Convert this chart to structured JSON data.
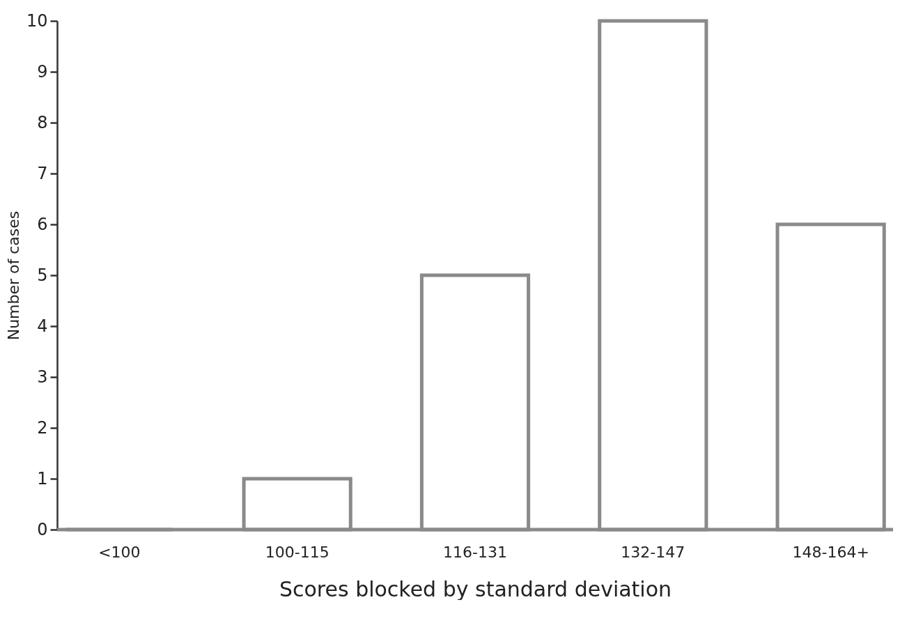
{
  "chart_data": {
    "type": "bar",
    "xlabel": "Scores blocked by standard deviation",
    "ylabel": "Number of cases",
    "categories": [
      "<100",
      "100-115",
      "116-131",
      "132-147",
      "148-164+"
    ],
    "values": [
      0,
      1,
      5,
      10,
      6
    ],
    "color": "#8a8a8a",
    "ylim": [
      0,
      10
    ],
    "yticks": [
      0,
      1,
      2,
      3,
      4,
      5,
      6,
      7,
      8,
      9,
      10
    ],
    "grid": false
  }
}
